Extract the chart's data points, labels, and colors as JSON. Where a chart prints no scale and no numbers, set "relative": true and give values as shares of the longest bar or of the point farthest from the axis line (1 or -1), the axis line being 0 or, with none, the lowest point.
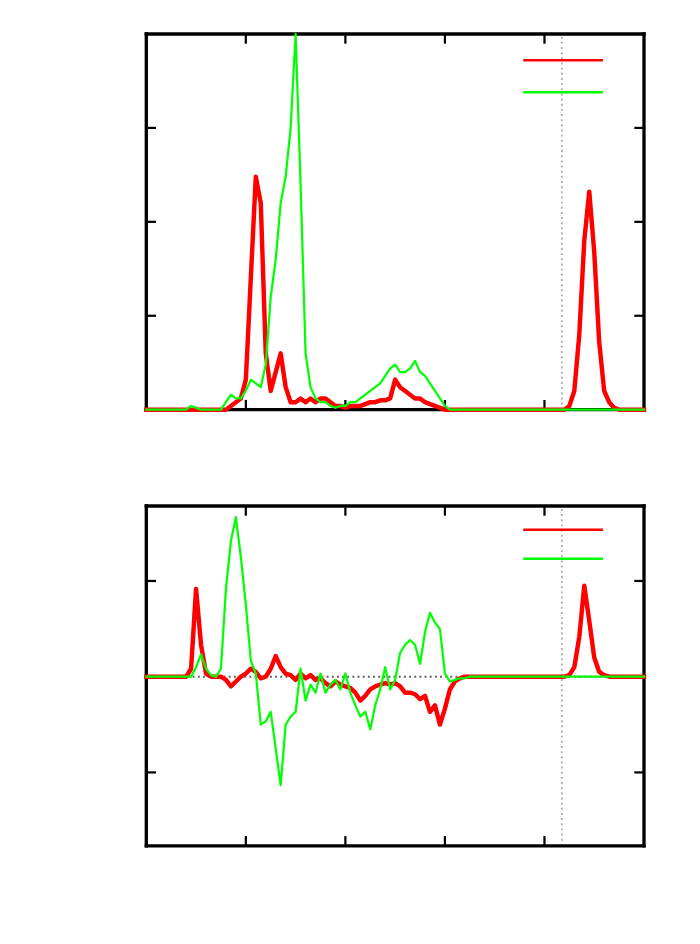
{
  "chart_data": [
    {
      "type": "line",
      "relative": true,
      "categories": [
        null,
        null,
        null,
        null,
        null,
        null,
        null,
        null,
        null,
        null,
        null,
        null,
        null,
        null,
        null,
        null,
        null,
        null,
        null,
        null,
        null,
        null,
        null,
        null,
        null,
        null,
        null,
        null,
        null,
        null,
        null,
        null,
        null,
        null,
        null,
        null,
        null,
        null,
        null,
        null,
        null,
        null,
        null,
        null,
        null,
        null,
        null,
        null,
        null,
        null,
        null,
        null,
        null,
        null,
        null,
        null,
        null,
        null,
        null,
        null,
        null,
        null,
        null,
        null,
        null,
        null,
        null,
        null,
        null,
        null,
        null,
        null,
        null,
        null,
        null,
        null,
        null,
        null,
        null,
        null,
        null,
        null,
        null,
        null,
        null,
        null,
        null,
        null,
        null,
        null,
        null,
        null,
        null,
        null,
        null,
        null,
        null,
        null,
        null,
        null,
        null
      ],
      "series": [
        {
          "color": "#ff0000",
          "values": [
            0,
            0,
            0,
            0,
            0,
            0,
            0,
            0,
            0,
            0,
            0,
            0,
            0,
            0,
            0,
            0,
            0,
            0.01,
            0.02,
            0.03,
            0.08,
            0.35,
            0.62,
            0.55,
            0.15,
            0.05,
            0.1,
            0.15,
            0.06,
            0.02,
            0.02,
            0.03,
            0.02,
            0.03,
            0.02,
            0.03,
            0.03,
            0.02,
            0.01,
            0.01,
            0.005,
            0.01,
            0.01,
            0.01,
            0.015,
            0.02,
            0.02,
            0.025,
            0.025,
            0.03,
            0.08,
            0.06,
            0.05,
            0.04,
            0.03,
            0.03,
            0.02,
            0.015,
            0.01,
            0.005,
            0,
            0,
            0,
            0,
            0,
            0,
            0,
            0,
            0,
            0,
            0,
            0,
            0,
            0,
            0,
            0,
            0,
            0,
            0,
            0,
            0,
            0,
            0,
            0,
            0,
            0.01,
            0.05,
            0.2,
            0.45,
            0.58,
            0.42,
            0.18,
            0.05,
            0.02,
            0.005,
            0,
            0,
            0,
            0,
            0,
            0
          ]
        },
        {
          "color": "#00ff00",
          "values": [
            0,
            0,
            0,
            0,
            0,
            0,
            0,
            0,
            0,
            0.01,
            0.005,
            0,
            0,
            0,
            0,
            0,
            0.02,
            0.04,
            0.03,
            0.03,
            0.05,
            0.08,
            0.07,
            0.06,
            0.12,
            0.3,
            0.4,
            0.55,
            0.62,
            0.75,
            1.0,
            0.6,
            0.15,
            0.06,
            0.03,
            0.02,
            0.02,
            0.01,
            0.005,
            0.01,
            0.01,
            0.02,
            0.02,
            0.03,
            0.04,
            0.05,
            0.06,
            0.07,
            0.09,
            0.11,
            0.12,
            0.1,
            0.1,
            0.11,
            0.13,
            0.1,
            0.09,
            0.07,
            0.05,
            0.03,
            0.01,
            0,
            0,
            0,
            0,
            0,
            0,
            0,
            0,
            0,
            0,
            0,
            0,
            0,
            0,
            0,
            0,
            0,
            0,
            0,
            0,
            0,
            0,
            0,
            0,
            0,
            0,
            0,
            0,
            0,
            0,
            0,
            0,
            0,
            0,
            0,
            0,
            0,
            0,
            0,
            0
          ]
        }
      ],
      "tick_labels": false,
      "grid": false
    },
    {
      "type": "line",
      "relative": true,
      "categories": [
        null,
        null,
        null,
        null,
        null,
        null,
        null,
        null,
        null,
        null,
        null,
        null,
        null,
        null,
        null,
        null,
        null,
        null,
        null,
        null,
        null,
        null,
        null,
        null,
        null,
        null,
        null,
        null,
        null,
        null,
        null,
        null,
        null,
        null,
        null,
        null,
        null,
        null,
        null,
        null,
        null,
        null,
        null,
        null,
        null,
        null,
        null,
        null,
        null,
        null,
        null,
        null,
        null,
        null,
        null,
        null,
        null,
        null,
        null,
        null,
        null,
        null,
        null,
        null,
        null,
        null,
        null,
        null,
        null,
        null,
        null,
        null,
        null,
        null,
        null,
        null,
        null,
        null,
        null,
        null,
        null,
        null,
        null,
        null,
        null,
        null,
        null,
        null,
        null,
        null,
        null,
        null,
        null,
        null,
        null,
        null,
        null,
        null,
        null,
        null,
        null
      ],
      "series": [
        {
          "color": "#ff0000",
          "values": [
            0,
            0,
            0,
            0,
            0,
            0,
            0,
            0,
            0,
            0.05,
            0.55,
            0.2,
            0.02,
            0,
            0,
            0,
            -0.02,
            -0.06,
            -0.03,
            0,
            0.02,
            0.05,
            0.03,
            -0.01,
            0,
            0.05,
            0.13,
            0.06,
            0.02,
            0.01,
            -0.02,
            0.02,
            -0.01,
            0.01,
            -0.02,
            -0.01,
            -0.04,
            -0.06,
            -0.03,
            -0.05,
            -0.06,
            -0.07,
            -0.1,
            -0.15,
            -0.12,
            -0.08,
            -0.06,
            -0.05,
            -0.04,
            -0.05,
            -0.04,
            -0.06,
            -0.1,
            -0.1,
            -0.11,
            -0.14,
            -0.12,
            -0.22,
            -0.18,
            -0.3,
            -0.2,
            -0.08,
            -0.03,
            -0.01,
            0,
            0,
            0,
            0,
            0,
            0,
            0,
            0,
            0,
            0,
            0,
            0,
            0,
            0,
            0,
            0,
            0,
            0,
            0,
            0,
            0,
            0.01,
            0.06,
            0.25,
            0.57,
            0.35,
            0.12,
            0.03,
            0.01,
            0,
            0,
            0,
            0,
            0,
            0,
            0,
            0
          ]
        },
        {
          "color": "#00ff00",
          "values": [
            0,
            0,
            0,
            0,
            0,
            0,
            0,
            0,
            0,
            0,
            0.06,
            0.14,
            0.05,
            0.01,
            0,
            0.05,
            0.55,
            0.85,
            1.0,
            0.75,
            0.45,
            0.1,
            0.02,
            -0.3,
            -0.28,
            -0.22,
            -0.45,
            -0.68,
            -0.3,
            -0.25,
            -0.22,
            0.05,
            -0.15,
            -0.05,
            -0.1,
            0.02,
            -0.1,
            -0.05,
            -0.02,
            -0.08,
            0.02,
            -0.1,
            -0.18,
            -0.25,
            -0.22,
            -0.33,
            -0.18,
            -0.08,
            0.06,
            -0.08,
            -0.02,
            0.15,
            0.2,
            0.23,
            0.2,
            0.08,
            0.28,
            0.4,
            0.34,
            0.3,
            0.02,
            -0.03,
            -0.02,
            -0.01,
            -0.01,
            0,
            0,
            0,
            0,
            0,
            0,
            0,
            0,
            0,
            0,
            0,
            0,
            0,
            0,
            0,
            0,
            0,
            0,
            0,
            0,
            0,
            0,
            0,
            0,
            0,
            0,
            0,
            0,
            0,
            0,
            0,
            0,
            0,
            0,
            0,
            0
          ]
        }
      ],
      "ref_lines": [
        {
          "axis": "y",
          "value": 0,
          "color": "#606060",
          "line_style": "dotted"
        }
      ],
      "tick_labels": false,
      "grid": false
    }
  ]
}
